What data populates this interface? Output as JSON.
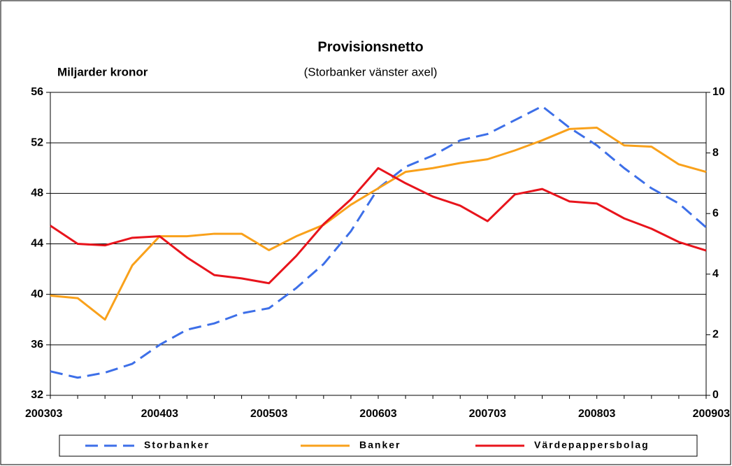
{
  "chart_data": {
    "type": "line",
    "title": "Provisionsnetto",
    "subtitle": "(Storbanker vänster axel)",
    "y_label": "Miljarder kronor",
    "categories": [
      "200303",
      null,
      null,
      null,
      "200403",
      null,
      null,
      null,
      "200503",
      null,
      null,
      null,
      "200603",
      null,
      null,
      null,
      "200703",
      null,
      null,
      null,
      "200803",
      null,
      null,
      null,
      "200903"
    ],
    "series": [
      {
        "name": "Storbanker",
        "color": "#3d6fe8",
        "dash": true,
        "axis": "y",
        "values": [
          33.9,
          33.4,
          33.8,
          34.5,
          36.0,
          37.2,
          37.7,
          38.5,
          38.9,
          40.5,
          42.4,
          45.0,
          48.4,
          50.1,
          51.0,
          52.2,
          52.7,
          53.8,
          54.9,
          53.2,
          51.8,
          50.0,
          48.4,
          47.2,
          45.3
        ]
      },
      {
        "name": "Banker",
        "color": "#f9a11b",
        "dash": false,
        "axis": "y",
        "values": [
          39.9,
          39.7,
          38.0,
          42.3,
          44.6,
          44.6,
          44.8,
          44.8,
          43.5,
          44.6,
          45.5,
          47.1,
          48.4,
          49.7,
          50.0,
          50.4,
          50.7,
          51.4,
          52.2,
          53.1,
          53.2,
          51.8,
          51.7,
          50.3,
          49.7
        ]
      },
      {
        "name": "Värdepappersbolag",
        "color": "#e8141c",
        "dash": false,
        "axis": "y2",
        "values": [
          5.6,
          5.0,
          4.95,
          5.2,
          5.25,
          4.55,
          3.97,
          3.86,
          3.7,
          4.6,
          5.65,
          6.47,
          7.5,
          7.0,
          6.56,
          6.26,
          5.75,
          6.63,
          6.81,
          6.4,
          6.33,
          5.84,
          5.5,
          5.06,
          4.78
        ]
      }
    ],
    "ylim": [
      32,
      56
    ],
    "yticks": [
      32,
      36,
      40,
      44,
      48,
      52,
      56
    ],
    "y2lim": [
      0,
      10
    ],
    "y2ticks": [
      0,
      2,
      4,
      6,
      8,
      10
    ],
    "grid": true,
    "legend": "bottom"
  }
}
